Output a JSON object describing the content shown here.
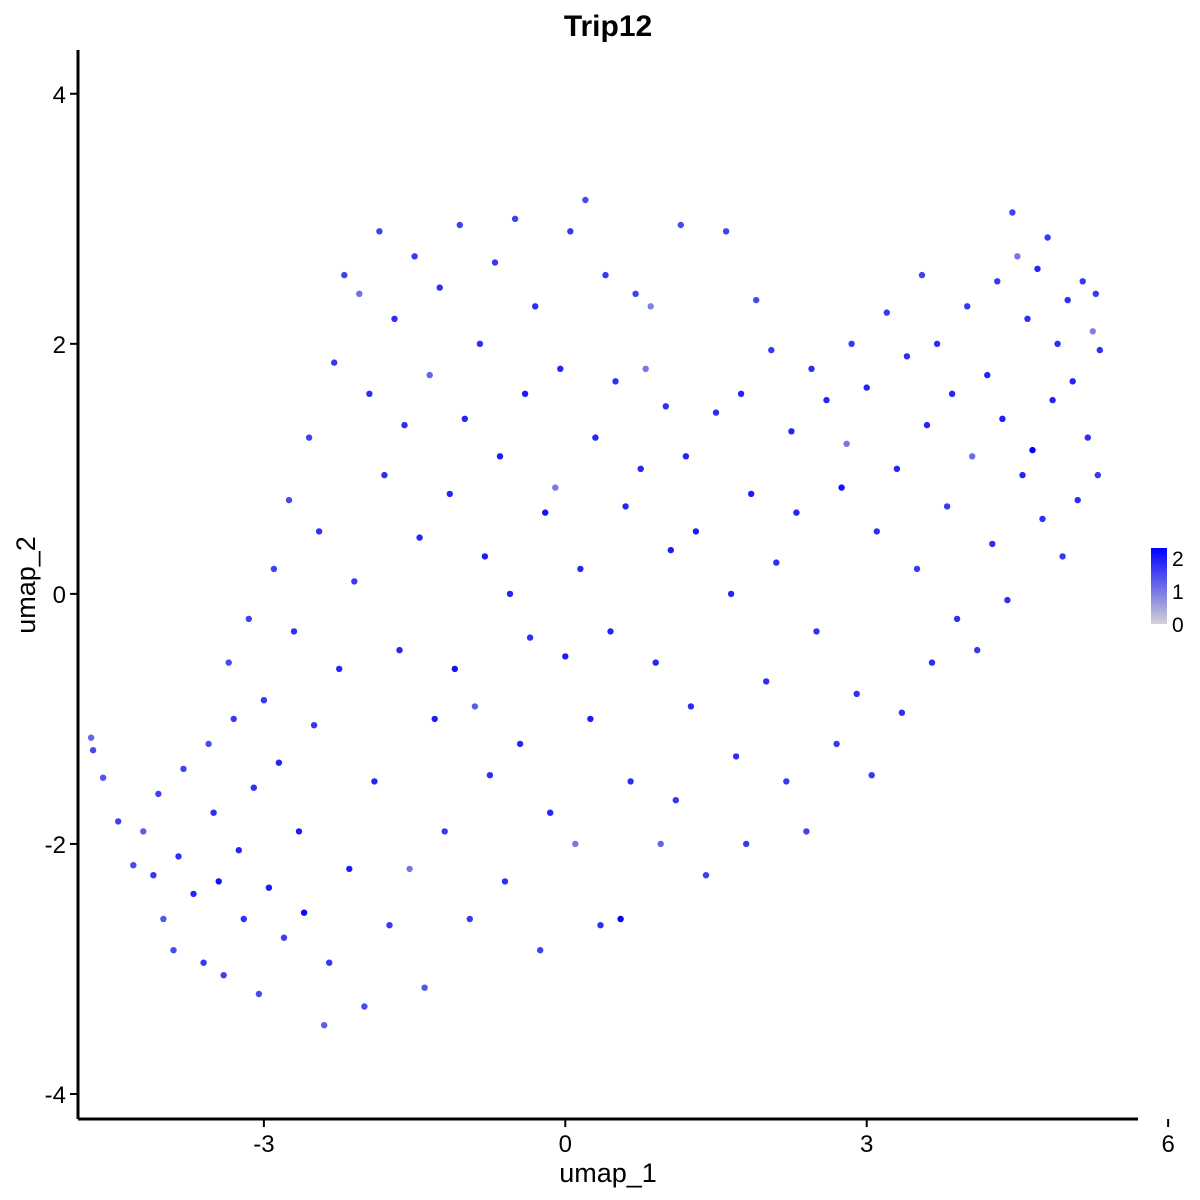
{
  "chart_data": {
    "type": "scatter",
    "title": "Trip12",
    "xlabel": "umap_1",
    "ylabel": "umap_2",
    "xlim": [
      -4.85,
      5.7
    ],
    "ylim": [
      -4.2,
      4.35
    ],
    "xticks": [
      -3,
      0,
      3,
      6
    ],
    "yticks": [
      -4,
      -2,
      0,
      2,
      4
    ],
    "xtick_labels": [
      "-3",
      "0",
      "3",
      "6"
    ],
    "ytick_labels": [
      "-4",
      "-2",
      "0",
      "2",
      "4"
    ],
    "grid": false,
    "legend": {
      "position": "right",
      "type": "colorbar",
      "min": 0,
      "max": 2.3,
      "ticks": [
        0,
        1,
        2
      ],
      "tick_labels": [
        "0",
        "1",
        "2"
      ],
      "low_color": "#d3d3d3",
      "high_color": "#0000ff"
    },
    "color_scale": "expression",
    "points": [
      [
        -4.7,
        -1.25,
        1.5
      ],
      [
        -4.72,
        -1.15,
        1.2
      ],
      [
        -4.6,
        -1.47,
        1.4
      ],
      [
        -4.45,
        -1.82,
        1.6
      ],
      [
        -4.3,
        -2.17,
        1.5
      ],
      [
        -4.2,
        -1.9,
        1.3
      ],
      [
        -4.1,
        -2.25,
        1.7
      ],
      [
        -4.05,
        -1.6,
        1.6
      ],
      [
        -4.0,
        -2.6,
        1.4
      ],
      [
        -3.9,
        -2.85,
        1.5
      ],
      [
        -3.85,
        -2.1,
        1.8
      ],
      [
        -3.8,
        -1.4,
        1.6
      ],
      [
        -3.7,
        -2.4,
        1.9
      ],
      [
        -3.6,
        -2.95,
        1.7
      ],
      [
        -3.55,
        -1.2,
        1.5
      ],
      [
        -3.5,
        -1.75,
        1.8
      ],
      [
        -3.45,
        -2.3,
        2.1
      ],
      [
        -3.4,
        -3.05,
        1.6
      ],
      [
        -3.35,
        -0.55,
        1.5
      ],
      [
        -3.3,
        -1.0,
        1.7
      ],
      [
        -3.25,
        -2.05,
        1.9
      ],
      [
        -3.2,
        -2.6,
        1.8
      ],
      [
        -3.15,
        -0.2,
        1.6
      ],
      [
        -3.1,
        -1.55,
        1.8
      ],
      [
        -3.05,
        -3.2,
        1.5
      ],
      [
        -3.0,
        -0.85,
        1.7
      ],
      [
        -2.95,
        -2.35,
        2.0
      ],
      [
        -2.9,
        0.2,
        1.6
      ],
      [
        -2.85,
        -1.35,
        1.9
      ],
      [
        -2.8,
        -2.75,
        1.6
      ],
      [
        -2.75,
        0.75,
        1.5
      ],
      [
        -2.7,
        -0.3,
        1.8
      ],
      [
        -2.65,
        -1.9,
        2.0
      ],
      [
        -2.6,
        -2.55,
        2.2
      ],
      [
        -2.55,
        1.25,
        1.6
      ],
      [
        -2.5,
        -1.05,
        1.7
      ],
      [
        -2.45,
        0.5,
        1.8
      ],
      [
        -2.4,
        -3.45,
        1.3
      ],
      [
        -2.35,
        -2.95,
        1.7
      ],
      [
        -2.3,
        1.85,
        1.7
      ],
      [
        -2.25,
        -0.6,
        1.9
      ],
      [
        -2.2,
        2.55,
        1.6
      ],
      [
        -2.15,
        -2.2,
        2.0
      ],
      [
        -2.1,
        0.1,
        1.7
      ],
      [
        -2.05,
        2.4,
        1.1
      ],
      [
        -2.0,
        -3.3,
        1.5
      ],
      [
        -1.95,
        1.6,
        1.8
      ],
      [
        -1.9,
        -1.5,
        1.9
      ],
      [
        -1.85,
        2.9,
        1.6
      ],
      [
        -1.8,
        0.95,
        1.8
      ],
      [
        -1.75,
        -2.65,
        1.7
      ],
      [
        -1.7,
        2.2,
        1.8
      ],
      [
        -1.65,
        -0.45,
        1.9
      ],
      [
        -1.6,
        1.35,
        1.8
      ],
      [
        -1.55,
        -2.2,
        1.0
      ],
      [
        -1.5,
        2.7,
        1.7
      ],
      [
        -1.45,
        0.45,
        1.9
      ],
      [
        -1.4,
        -3.15,
        1.4
      ],
      [
        -1.35,
        1.75,
        1.2
      ],
      [
        -1.3,
        -1.0,
        2.0
      ],
      [
        -1.25,
        2.45,
        1.8
      ],
      [
        -1.2,
        -1.9,
        1.7
      ],
      [
        -1.15,
        0.8,
        1.9
      ],
      [
        -1.1,
        -0.6,
        2.1
      ],
      [
        -1.05,
        2.95,
        1.6
      ],
      [
        -1.0,
        1.4,
        1.9
      ],
      [
        -0.95,
        -2.6,
        1.7
      ],
      [
        -0.9,
        -0.9,
        1.3
      ],
      [
        -0.85,
        2.0,
        1.8
      ],
      [
        -0.8,
        0.3,
        2.0
      ],
      [
        -0.75,
        -1.45,
        1.8
      ],
      [
        -0.7,
        2.65,
        1.7
      ],
      [
        -0.65,
        1.1,
        2.0
      ],
      [
        -0.6,
        -2.3,
        1.8
      ],
      [
        -0.55,
        0.0,
        1.9
      ],
      [
        -0.5,
        3.0,
        1.6
      ],
      [
        -0.45,
        -1.2,
        1.9
      ],
      [
        -0.4,
        1.6,
        2.0
      ],
      [
        -0.35,
        -0.35,
        1.8
      ],
      [
        -0.3,
        2.3,
        1.8
      ],
      [
        -0.25,
        -2.85,
        1.6
      ],
      [
        -0.2,
        0.65,
        2.1
      ],
      [
        -0.15,
        -1.75,
        1.9
      ],
      [
        -0.1,
        0.85,
        1.0
      ],
      [
        -0.05,
        1.8,
        1.9
      ],
      [
        0.0,
        -0.5,
        2.0
      ],
      [
        0.05,
        2.9,
        1.7
      ],
      [
        0.1,
        -2.0,
        1.0
      ],
      [
        0.15,
        0.2,
        1.9
      ],
      [
        0.2,
        3.15,
        1.5
      ],
      [
        0.25,
        -1.0,
        2.0
      ],
      [
        0.3,
        1.25,
        1.9
      ],
      [
        0.35,
        -2.65,
        1.8
      ],
      [
        0.4,
        2.55,
        1.7
      ],
      [
        0.45,
        -0.3,
        1.9
      ],
      [
        0.5,
        1.7,
        1.8
      ],
      [
        0.55,
        -2.6,
        2.3
      ],
      [
        0.6,
        0.7,
        1.9
      ],
      [
        0.65,
        -1.5,
        1.8
      ],
      [
        0.7,
        2.4,
        1.6
      ],
      [
        0.75,
        1.0,
        1.9
      ],
      [
        0.8,
        1.8,
        1.0
      ],
      [
        0.85,
        2.3,
        0.9
      ],
      [
        0.9,
        -0.55,
        1.9
      ],
      [
        0.95,
        -2.0,
        1.2
      ],
      [
        1.0,
        1.5,
        1.8
      ],
      [
        1.05,
        0.35,
        2.0
      ],
      [
        1.1,
        -1.65,
        1.7
      ],
      [
        1.15,
        2.95,
        1.5
      ],
      [
        1.2,
        1.1,
        1.9
      ],
      [
        1.25,
        -0.9,
        1.8
      ],
      [
        1.3,
        0.5,
        2.0
      ],
      [
        1.4,
        -2.25,
        1.6
      ],
      [
        1.5,
        1.45,
        1.8
      ],
      [
        1.6,
        2.9,
        1.6
      ],
      [
        1.65,
        0.0,
        1.9
      ],
      [
        1.7,
        -1.3,
        1.8
      ],
      [
        1.75,
        1.6,
        1.9
      ],
      [
        1.8,
        -2.0,
        1.7
      ],
      [
        1.85,
        0.8,
        2.0
      ],
      [
        1.9,
        2.35,
        1.5
      ],
      [
        2.0,
        -0.7,
        1.8
      ],
      [
        2.05,
        1.95,
        1.7
      ],
      [
        2.1,
        0.25,
        1.8
      ],
      [
        2.2,
        -1.5,
        1.7
      ],
      [
        2.25,
        1.3,
        1.9
      ],
      [
        2.3,
        0.65,
        1.9
      ],
      [
        2.4,
        -1.9,
        1.6
      ],
      [
        2.45,
        1.8,
        1.8
      ],
      [
        2.5,
        -0.3,
        1.8
      ],
      [
        2.6,
        1.55,
        1.9
      ],
      [
        2.7,
        -1.2,
        1.7
      ],
      [
        2.75,
        0.85,
        2.1
      ],
      [
        2.8,
        1.2,
        1.0
      ],
      [
        2.85,
        2.0,
        1.7
      ],
      [
        2.9,
        -0.8,
        1.8
      ],
      [
        3.0,
        1.65,
        1.9
      ],
      [
        3.05,
        -1.45,
        1.7
      ],
      [
        3.1,
        0.5,
        1.8
      ],
      [
        3.2,
        2.25,
        1.7
      ],
      [
        3.3,
        1.0,
        1.9
      ],
      [
        3.35,
        -0.95,
        1.8
      ],
      [
        3.4,
        1.9,
        1.8
      ],
      [
        3.5,
        0.2,
        1.7
      ],
      [
        3.55,
        2.55,
        1.6
      ],
      [
        3.6,
        1.35,
        1.9
      ],
      [
        3.65,
        -0.55,
        1.8
      ],
      [
        3.7,
        2.0,
        1.8
      ],
      [
        3.8,
        0.7,
        1.7
      ],
      [
        3.85,
        1.6,
        1.9
      ],
      [
        3.9,
        -0.2,
        1.8
      ],
      [
        4.0,
        2.3,
        1.7
      ],
      [
        4.05,
        1.1,
        1.1
      ],
      [
        4.1,
        -0.45,
        1.7
      ],
      [
        4.2,
        1.75,
        1.9
      ],
      [
        4.25,
        0.4,
        1.8
      ],
      [
        4.3,
        2.5,
        1.7
      ],
      [
        4.35,
        1.4,
        2.0
      ],
      [
        4.4,
        -0.05,
        1.8
      ],
      [
        4.45,
        3.05,
        1.6
      ],
      [
        4.5,
        2.7,
        1.0
      ],
      [
        4.55,
        0.95,
        1.9
      ],
      [
        4.6,
        2.2,
        1.8
      ],
      [
        4.65,
        1.15,
        2.3
      ],
      [
        4.7,
        2.6,
        1.9
      ],
      [
        4.75,
        0.6,
        1.8
      ],
      [
        4.8,
        2.85,
        1.7
      ],
      [
        4.85,
        1.55,
        1.9
      ],
      [
        4.9,
        2.0,
        1.8
      ],
      [
        4.95,
        0.3,
        1.7
      ],
      [
        5.0,
        2.35,
        1.8
      ],
      [
        5.05,
        1.7,
        1.9
      ],
      [
        5.1,
        0.75,
        1.8
      ],
      [
        5.15,
        2.5,
        1.7
      ],
      [
        5.2,
        1.25,
        1.8
      ],
      [
        5.25,
        2.1,
        0.9
      ],
      [
        5.3,
        0.95,
        1.7
      ],
      [
        5.32,
        1.95,
        1.8
      ],
      [
        5.28,
        2.4,
        1.7
      ]
    ]
  }
}
